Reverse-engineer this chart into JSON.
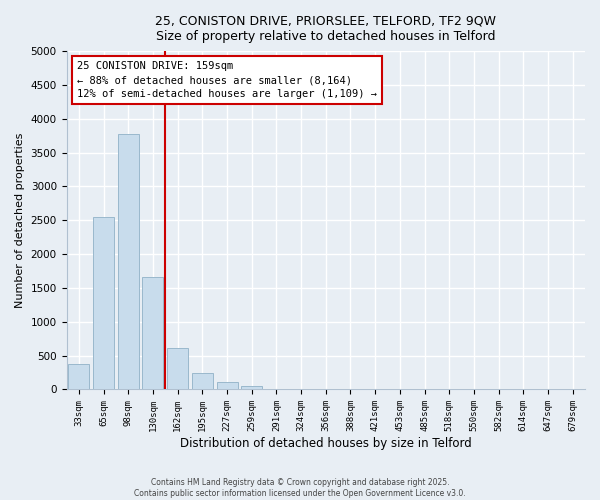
{
  "title_line1": "25, CONISTON DRIVE, PRIORSLEE, TELFORD, TF2 9QW",
  "title_line2": "Size of property relative to detached houses in Telford",
  "xlabel": "Distribution of detached houses by size in Telford",
  "ylabel": "Number of detached properties",
  "bar_color": "#c8dcec",
  "bar_edge_color": "#9ab8cc",
  "categories": [
    "33sqm",
    "65sqm",
    "98sqm",
    "130sqm",
    "162sqm",
    "195sqm",
    "227sqm",
    "259sqm",
    "291sqm",
    "324sqm",
    "356sqm",
    "388sqm",
    "421sqm",
    "453sqm",
    "485sqm",
    "518sqm",
    "550sqm",
    "582sqm",
    "614sqm",
    "647sqm",
    "679sqm"
  ],
  "values": [
    380,
    2550,
    3780,
    1660,
    620,
    245,
    105,
    55,
    0,
    0,
    0,
    0,
    0,
    0,
    0,
    0,
    0,
    0,
    0,
    0,
    0
  ],
  "ylim": [
    0,
    5000
  ],
  "yticks": [
    0,
    500,
    1000,
    1500,
    2000,
    2500,
    3000,
    3500,
    4000,
    4500,
    5000
  ],
  "vline_color": "#cc0000",
  "annotation_title": "25 CONISTON DRIVE: 159sqm",
  "annotation_line1": "← 88% of detached houses are smaller (8,164)",
  "annotation_line2": "12% of semi-detached houses are larger (1,109) →",
  "annotation_box_color": "#ffffff",
  "annotation_box_edge": "#cc0000",
  "footer_line1": "Contains HM Land Registry data © Crown copyright and database right 2025.",
  "footer_line2": "Contains public sector information licensed under the Open Government Licence v3.0.",
  "background_color": "#e8eef4",
  "grid_color": "#ffffff",
  "spine_color": "#b0c0d0"
}
